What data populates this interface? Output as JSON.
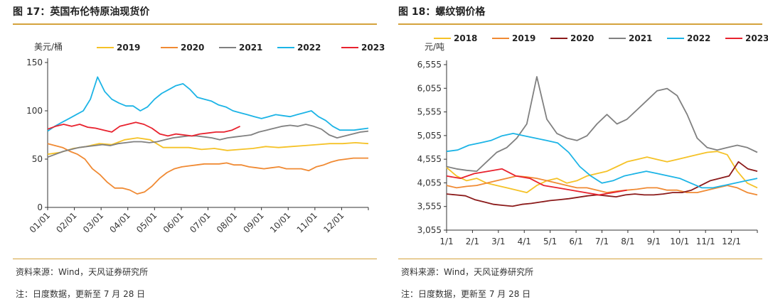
{
  "left": {
    "title": "图 17：英国布伦特原油现货价",
    "source": "资料来源：Wind，天风证券研究所",
    "note": "注：日度数据，更新至 7 月 28 日"
  },
  "right": {
    "title": "图 18：螺纹钢价格",
    "source": "资料来源：Wind，天风证券研究所",
    "note": "注：日度数据，更新至 7 月 28 日"
  },
  "chart_data": [
    {
      "type": "line",
      "unit_label": "美元/桶",
      "x_ticks": [
        "01/01",
        "02/01",
        "03/01",
        "04/01",
        "05/01",
        "06/01",
        "07/01",
        "08/01",
        "09/01",
        "10/01",
        "11/01",
        "12/01"
      ],
      "ylim": [
        0,
        150
      ],
      "y_ticks": [
        0,
        50,
        100,
        150
      ],
      "legend_position": "top",
      "series": [
        {
          "name": "2019",
          "color": "#f5c227",
          "values": [
            55,
            57,
            61,
            63,
            66,
            65,
            70,
            72,
            70,
            62,
            62,
            62,
            60,
            61,
            59,
            60,
            61,
            63,
            62,
            63,
            64,
            65,
            66,
            66,
            67,
            66
          ]
        },
        {
          "name": "2020",
          "color": "#f08a33",
          "values": [
            66,
            64,
            62,
            58,
            55,
            50,
            40,
            34,
            26,
            20,
            20,
            18,
            14,
            16,
            22,
            30,
            36,
            40,
            42,
            43,
            44,
            45,
            45,
            45,
            46,
            44,
            44,
            42,
            41,
            40,
            41,
            42,
            40,
            40,
            40,
            38,
            42,
            44,
            47,
            49,
            50,
            51,
            51,
            51
          ]
        },
        {
          "name": "2021",
          "color": "#808080",
          "values": [
            52,
            55,
            58,
            60,
            62,
            63,
            64,
            65,
            64,
            66,
            67,
            68,
            68,
            67,
            68,
            70,
            72,
            73,
            74,
            74,
            73,
            72,
            70,
            72,
            73,
            74,
            75,
            78,
            80,
            82,
            84,
            85,
            84,
            86,
            84,
            81,
            75,
            72,
            74,
            76,
            78,
            79
          ]
        },
        {
          "name": "2022",
          "color": "#1cb4e6",
          "values": [
            79,
            84,
            88,
            92,
            96,
            100,
            112,
            135,
            120,
            112,
            108,
            105,
            105,
            100,
            104,
            112,
            118,
            122,
            126,
            128,
            122,
            114,
            112,
            110,
            106,
            104,
            100,
            98,
            96,
            94,
            92,
            94,
            96,
            95,
            94,
            96,
            98,
            100,
            94,
            90,
            84,
            80,
            80,
            80,
            81,
            82
          ]
        },
        {
          "name": "2023",
          "color": "#e8222e",
          "values": [
            81,
            84,
            86,
            84,
            86,
            83,
            82,
            80,
            78,
            84,
            86,
            88,
            86,
            82,
            76,
            74,
            76,
            75,
            74,
            76,
            77,
            78,
            78,
            80,
            84
          ]
        }
      ]
    },
    {
      "type": "line",
      "unit_label": "元/吨",
      "x_ticks": [
        "1/1",
        "2/1",
        "3/1",
        "4/1",
        "5/1",
        "6/1",
        "7/1",
        "8/1",
        "9/1",
        "10/1",
        "11/1",
        "12/1"
      ],
      "ylim": [
        3055,
        6555
      ],
      "y_ticks": [
        "3,055",
        "3,555",
        "4,055",
        "4,555",
        "5,055",
        "5,555",
        "6,055",
        "6,555"
      ],
      "y_tick_values": [
        3055,
        3555,
        4055,
        4555,
        5055,
        5555,
        6055,
        6555
      ],
      "legend_position": "top",
      "series": [
        {
          "name": "2018",
          "color": "#f5c227",
          "values": [
            4380,
            4200,
            4100,
            4150,
            4050,
            4000,
            3950,
            3900,
            3850,
            4000,
            4100,
            4150,
            4050,
            4100,
            4200,
            4250,
            4300,
            4400,
            4500,
            4550,
            4600,
            4550,
            4500,
            4550,
            4600,
            4650,
            4700,
            4720,
            4650,
            4300,
            4050,
            3950
          ]
        },
        {
          "name": "2019",
          "color": "#f08a33",
          "values": [
            4000,
            3950,
            3980,
            4000,
            4050,
            4100,
            4150,
            4200,
            4180,
            4150,
            4100,
            4050,
            4000,
            3950,
            3950,
            3900,
            3850,
            3880,
            3900,
            3920,
            3950,
            3950,
            3900,
            3900,
            3850,
            3850,
            3900,
            3950,
            4000,
            3950,
            3850,
            3800
          ]
        },
        {
          "name": "2020",
          "color": "#8b1a1a",
          "values": [
            3820,
            3800,
            3780,
            3700,
            3650,
            3600,
            3580,
            3560,
            3600,
            3620,
            3650,
            3680,
            3700,
            3720,
            3750,
            3780,
            3800,
            3780,
            3760,
            3800,
            3820,
            3800,
            3800,
            3820,
            3850,
            3850,
            3900,
            4000,
            4100,
            4150,
            4200,
            4500,
            4350,
            4300
          ]
        },
        {
          "name": "2021",
          "color": "#808080",
          "values": [
            4400,
            4350,
            4320,
            4300,
            4500,
            4700,
            4800,
            5000,
            5300,
            6300,
            5400,
            5100,
            5000,
            4950,
            5050,
            5300,
            5500,
            5300,
            5400,
            5600,
            5800,
            6000,
            6050,
            5900,
            5500,
            5000,
            4800,
            4750,
            4800,
            4850,
            4800,
            4700
          ]
        },
        {
          "name": "2022",
          "color": "#1cb4e6",
          "values": [
            4720,
            4750,
            4850,
            4900,
            4950,
            5050,
            5100,
            5050,
            5000,
            4950,
            4900,
            4700,
            4400,
            4200,
            4050,
            4100,
            4200,
            4250,
            4300,
            4250,
            4200,
            4150,
            4050,
            3950,
            3950,
            4000,
            4050,
            4100,
            4150
          ]
        },
        {
          "name": "2023",
          "color": "#e8222e",
          "values": [
            4200,
            4150,
            4250,
            4300,
            4350,
            4200,
            4150,
            4000,
            3950,
            3900,
            3850,
            3800,
            3850,
            3900
          ]
        }
      ]
    }
  ]
}
